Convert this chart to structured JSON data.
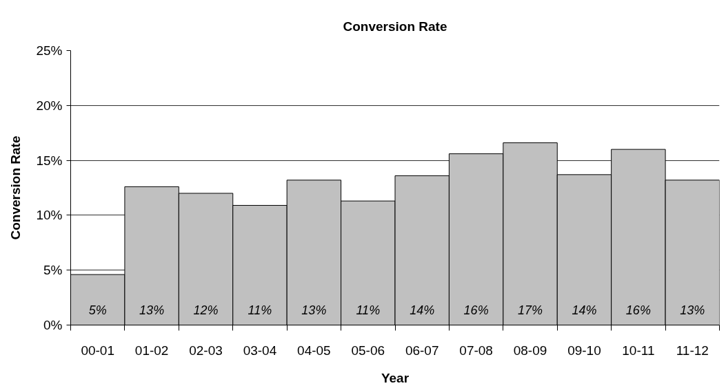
{
  "chart_data": {
    "type": "bar",
    "title": "Conversion Rate",
    "xlabel": "Year",
    "ylabel": "Conversion Rate",
    "categories": [
      "00-01",
      "01-02",
      "02-03",
      "03-04",
      "04-05",
      "05-06",
      "06-07",
      "07-08",
      "08-09",
      "09-10",
      "10-11",
      "11-12"
    ],
    "values": [
      4.6,
      12.6,
      12.0,
      10.9,
      13.2,
      11.3,
      13.6,
      15.6,
      16.6,
      13.7,
      16.0,
      13.2
    ],
    "value_labels": [
      "5%",
      "13%",
      "12%",
      "11%",
      "13%",
      "11%",
      "14%",
      "16%",
      "17%",
      "14%",
      "16%",
      "13%"
    ],
    "color": "#c0c0c0",
    "ylim": [
      0,
      25
    ],
    "yticks": [
      {
        "value": 0,
        "label": "0%"
      },
      {
        "value": 5,
        "label": "5%"
      },
      {
        "value": 10,
        "label": "10%"
      },
      {
        "value": 15,
        "label": "15%"
      },
      {
        "value": 20,
        "label": "20%"
      },
      {
        "value": 25,
        "label": "25%"
      }
    ],
    "grid": "y"
  }
}
